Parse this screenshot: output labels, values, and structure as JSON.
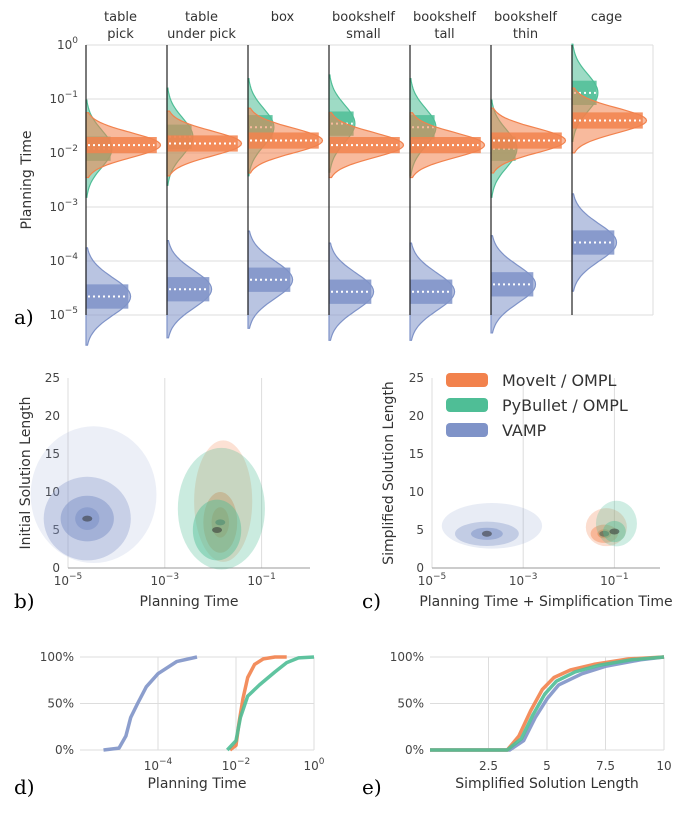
{
  "colors": {
    "moveit": "#F2824D",
    "pybullet": "#4FBE96",
    "vamp": "#7F93C8",
    "grid": "#dddddd"
  },
  "labels": {
    "a": "a)",
    "b": "b)",
    "c": "c)",
    "d": "d)",
    "e": "e)"
  },
  "legend": [
    "MoveIt / OMPL",
    "PyBullet / OMPL",
    "VAMP"
  ],
  "chart_data": [
    {
      "id": "a",
      "type": "violin",
      "ylabel": "Planning Time",
      "yscale": "log",
      "ylim": [
        1e-05,
        1
      ],
      "ytick_labels": [
        "10^-5",
        "10^-4",
        "10^-3",
        "10^-2",
        "10^-1",
        "10^0"
      ],
      "columns": [
        {
          "label": [
            "table",
            "pick"
          ],
          "median": {
            "MoveIt / OMPL": 0.014,
            "PyBullet / OMPL": 0.012,
            "VAMP": 2.2e-05
          }
        },
        {
          "label": [
            "table",
            "under pick"
          ],
          "median": {
            "MoveIt / OMPL": 0.015,
            "PyBullet / OMPL": 0.02,
            "VAMP": 3e-05
          }
        },
        {
          "label": [
            "box",
            ""
          ],
          "median": {
            "MoveIt / OMPL": 0.017,
            "PyBullet / OMPL": 0.03,
            "VAMP": 4.5e-05
          }
        },
        {
          "label": [
            "bookshelf",
            "small"
          ],
          "median": {
            "MoveIt / OMPL": 0.014,
            "PyBullet / OMPL": 0.035,
            "VAMP": 2.7e-05
          }
        },
        {
          "label": [
            "bookshelf",
            "tall"
          ],
          "median": {
            "MoveIt / OMPL": 0.014,
            "PyBullet / OMPL": 0.03,
            "VAMP": 2.7e-05
          }
        },
        {
          "label": [
            "bookshelf",
            "thin"
          ],
          "median": {
            "MoveIt / OMPL": 0.017,
            "PyBullet / OMPL": 0.012,
            "VAMP": 3.7e-05
          }
        },
        {
          "label": [
            "cage",
            ""
          ],
          "median": {
            "MoveIt / OMPL": 0.04,
            "PyBullet / OMPL": 0.13,
            "VAMP": 0.00022
          }
        }
      ]
    },
    {
      "id": "b",
      "type": "density",
      "xlabel": "Planning Time",
      "ylabel": "Initial Solution Length",
      "xscale": "log",
      "xlim": [
        1e-05,
        1
      ],
      "ylim": [
        0,
        25
      ],
      "xtick_labels": [
        "10^-5",
        "10^-3",
        "10^-1"
      ],
      "ytick_labels": [
        "0",
        "5",
        "10",
        "15",
        "20",
        "25"
      ],
      "series": [
        {
          "name": "VAMP",
          "peak": [
            2.5e-05,
            6.5
          ]
        },
        {
          "name": "MoveIt / OMPL",
          "peak": [
            0.014,
            6.0
          ]
        },
        {
          "name": "PyBullet / OMPL",
          "peak": [
            0.012,
            5.0
          ]
        }
      ]
    },
    {
      "id": "c",
      "type": "density",
      "xlabel": "Planning Time + Simplification Time",
      "ylabel": "Simplified Solution Length",
      "xscale": "log",
      "xlim": [
        1e-05,
        1
      ],
      "ylim": [
        0,
        25
      ],
      "xtick_labels": [
        "10^-5",
        "10^-3",
        "10^-1"
      ],
      "ytick_labels": [
        "0",
        "5",
        "10",
        "15",
        "20",
        "25"
      ],
      "series": [
        {
          "name": "VAMP",
          "peak": [
            0.00016,
            4.5
          ]
        },
        {
          "name": "MoveIt / OMPL",
          "peak": [
            0.06,
            4.5
          ]
        },
        {
          "name": "PyBullet / OMPL",
          "peak": [
            0.1,
            4.8
          ]
        }
      ]
    },
    {
      "id": "d",
      "type": "line",
      "xlabel": "Planning Time",
      "xscale": "log",
      "xlim": [
        1e-06,
        1
      ],
      "ylim": [
        0,
        1
      ],
      "xtick_labels": [
        "10^-4",
        "10^-2",
        "10^0"
      ],
      "ytick_labels": [
        "0%",
        "50%",
        "100%"
      ],
      "series": [
        {
          "name": "VAMP",
          "x": [
            4e-06,
            1e-05,
            1.5e-05,
            2e-05,
            3e-05,
            5e-05,
            0.0001,
            0.0003,
            0.001
          ],
          "y": [
            0,
            0.02,
            0.15,
            0.35,
            0.5,
            0.68,
            0.82,
            0.95,
            1.0
          ]
        },
        {
          "name": "MoveIt / OMPL",
          "x": [
            0.007,
            0.01,
            0.012,
            0.015,
            0.02,
            0.03,
            0.05,
            0.1,
            0.2
          ],
          "y": [
            0,
            0.05,
            0.3,
            0.55,
            0.78,
            0.92,
            0.98,
            1.0,
            1.0
          ]
        },
        {
          "name": "PyBullet / OMPL",
          "x": [
            0.006,
            0.01,
            0.013,
            0.02,
            0.04,
            0.1,
            0.2,
            0.4,
            1.0
          ],
          "y": [
            0,
            0.1,
            0.35,
            0.58,
            0.7,
            0.84,
            0.94,
            0.99,
            1.0
          ]
        }
      ]
    },
    {
      "id": "e",
      "type": "line",
      "xlabel": "Simplified Solution Length",
      "xlim": [
        0,
        10
      ],
      "ylim": [
        0,
        1
      ],
      "xtick_labels": [
        "2.5",
        "5",
        "7.5",
        "10"
      ],
      "ytick_labels": [
        "0%",
        "50%",
        "100%"
      ],
      "series": [
        {
          "name": "VAMP",
          "x": [
            0,
            3.4,
            4.0,
            4.5,
            5.0,
            5.5,
            6.5,
            7.5,
            9.0,
            10
          ],
          "y": [
            0,
            0,
            0.1,
            0.35,
            0.55,
            0.7,
            0.82,
            0.9,
            0.97,
            1.0
          ]
        },
        {
          "name": "MoveIt / OMPL",
          "x": [
            0,
            3.3,
            3.8,
            4.3,
            4.8,
            5.3,
            6.0,
            7.0,
            8.5,
            10
          ],
          "y": [
            0,
            0,
            0.15,
            0.42,
            0.65,
            0.78,
            0.86,
            0.92,
            0.98,
            1.0
          ]
        },
        {
          "name": "PyBullet / OMPL",
          "x": [
            0,
            3.3,
            3.9,
            4.4,
            4.9,
            5.4,
            6.2,
            7.2,
            8.6,
            10
          ],
          "y": [
            0,
            0,
            0.12,
            0.38,
            0.6,
            0.74,
            0.84,
            0.91,
            0.97,
            1.0
          ]
        }
      ]
    }
  ]
}
